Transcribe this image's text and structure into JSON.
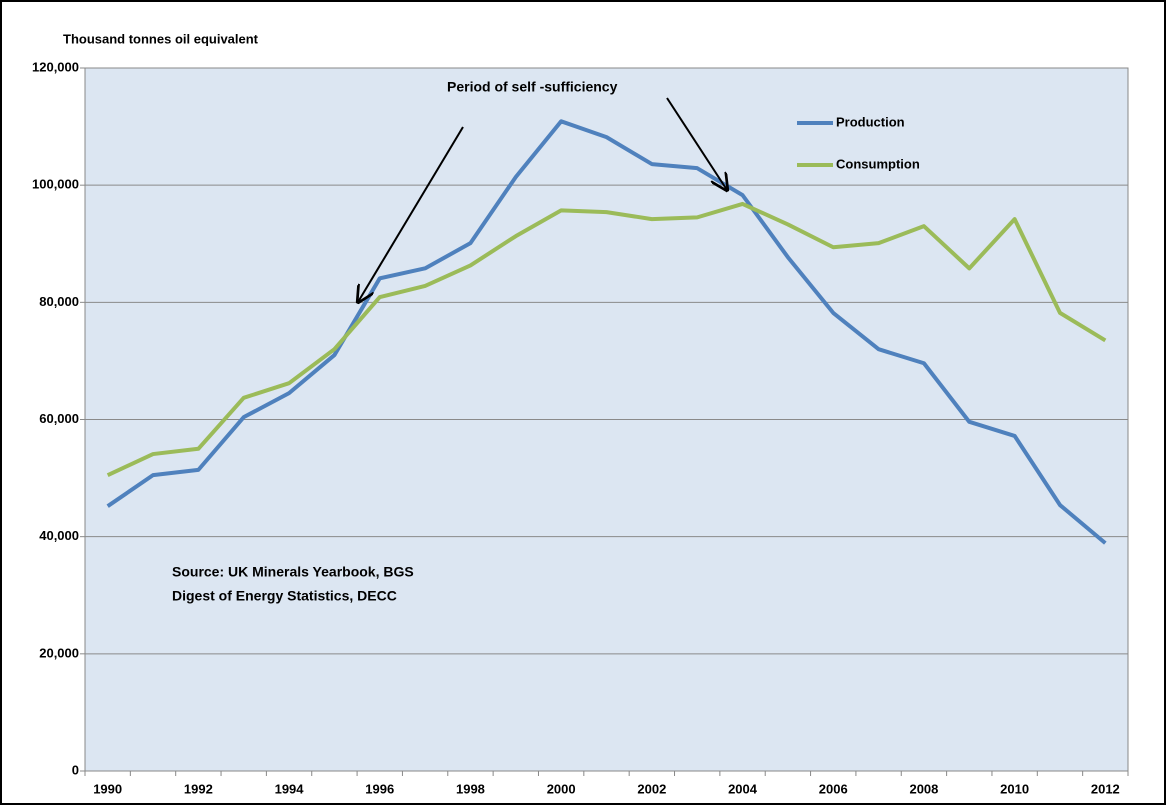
{
  "chart_data": {
    "type": "line",
    "y_label": "Thousand tonnes oil equivalent",
    "annotation": "Period of self -sufficiency",
    "source": [
      "Source: UK Minerals Yearbook, BGS",
      "Digest of Energy Statistics, DECC"
    ],
    "categories": [
      "1990",
      null,
      "1992",
      null,
      "1994",
      null,
      "1996",
      null,
      "1998",
      null,
      "2000",
      null,
      "2002",
      null,
      "2004",
      null,
      "2006",
      null,
      "2008",
      null,
      "2010",
      null,
      "2012"
    ],
    "series": [
      {
        "name": "Production",
        "color": "#4f81bd",
        "values": [
          45200,
          50500,
          51400,
          60400,
          64500,
          71000,
          84100,
          85800,
          90100,
          101400,
          110900,
          108200,
          103600,
          102900,
          98300,
          87700,
          78200,
          72000,
          69600,
          59600,
          57200,
          45400,
          38900
        ]
      },
      {
        "name": "Consumption",
        "color": "#9bbb59",
        "values": [
          50500,
          54100,
          55000,
          63700,
          66200,
          72000,
          80900,
          82800,
          86300,
          91300,
          95700,
          95400,
          94200,
          94500,
          96800,
          93300,
          89400,
          90100,
          93000,
          85800,
          94200,
          78200,
          73500
        ]
      }
    ],
    "ylim": [
      0,
      120000
    ],
    "yticks": [
      0,
      {
        "value": 20000,
        "label": "20,000"
      },
      {
        "value": 40000,
        "label": "40,000"
      },
      {
        "value": 60000,
        "label": "60,000"
      },
      {
        "value": 80000,
        "label": "80,000"
      },
      {
        "value": 100000,
        "label": "100,000"
      },
      {
        "value": 120000,
        "label": "120,000"
      }
    ],
    "grid": true,
    "legend": "top-right"
  }
}
